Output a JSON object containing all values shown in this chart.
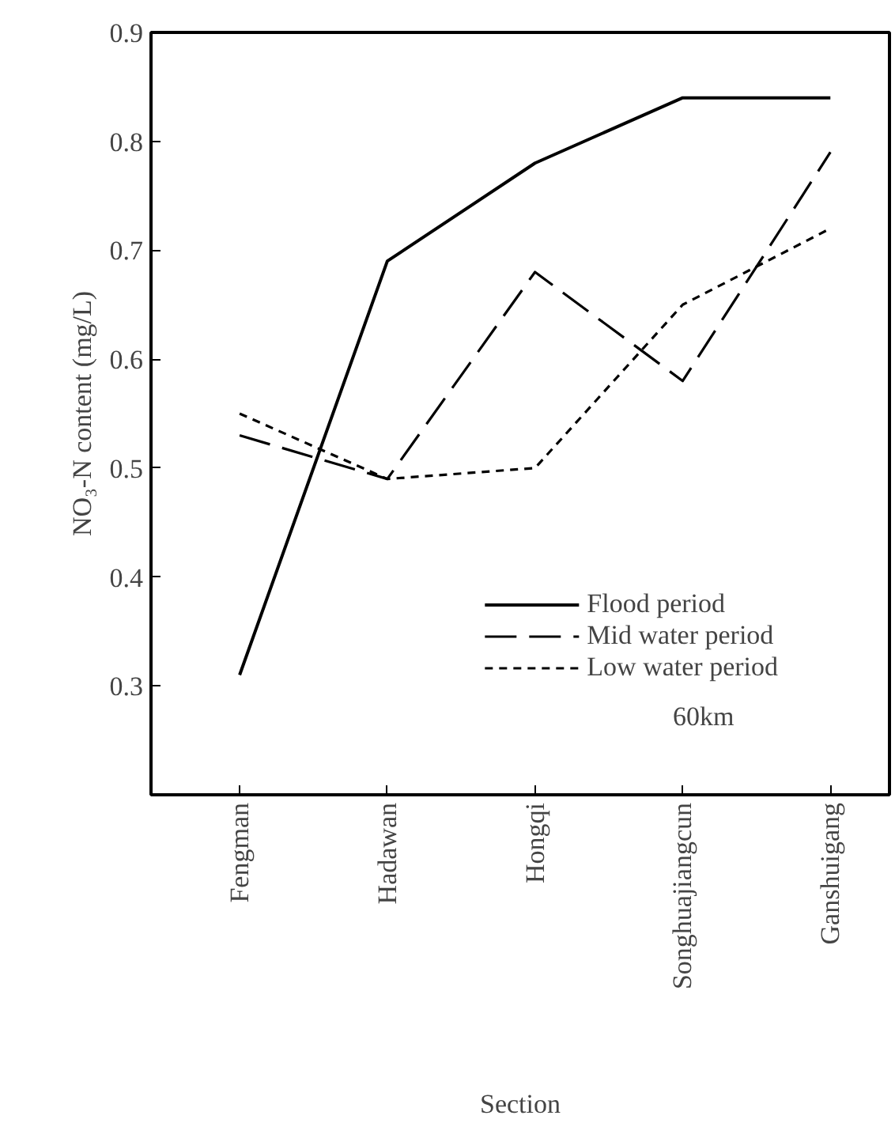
{
  "chart_data": {
    "type": "line",
    "xlabel": "Section",
    "ylabel": "NO₃-N content (mg/L)",
    "categories": [
      "Fengman",
      "Hadawan",
      "Hongqi",
      "Songhuajiangcun",
      "Ganshuigang"
    ],
    "ylim": [
      0.2,
      0.9
    ],
    "yticks": [
      0.3,
      0.4,
      0.5,
      0.6,
      0.7,
      0.8,
      0.9
    ],
    "series": [
      {
        "name": "Flood period",
        "color": "#000000",
        "line_style": "solid",
        "values": [
          0.31,
          0.69,
          0.78,
          0.84,
          0.84
        ]
      },
      {
        "name": "Mid water period",
        "color": "#000000",
        "line_style": "dashed",
        "values": [
          0.53,
          0.49,
          0.68,
          0.58,
          0.79
        ]
      },
      {
        "name": "Low water period",
        "color": "#000000",
        "line_style": "dotted",
        "values": [
          0.55,
          0.49,
          0.5,
          0.65,
          0.72
        ]
      }
    ],
    "legend": "bottom right",
    "grid": false,
    "annotations": [
      "60km"
    ]
  }
}
